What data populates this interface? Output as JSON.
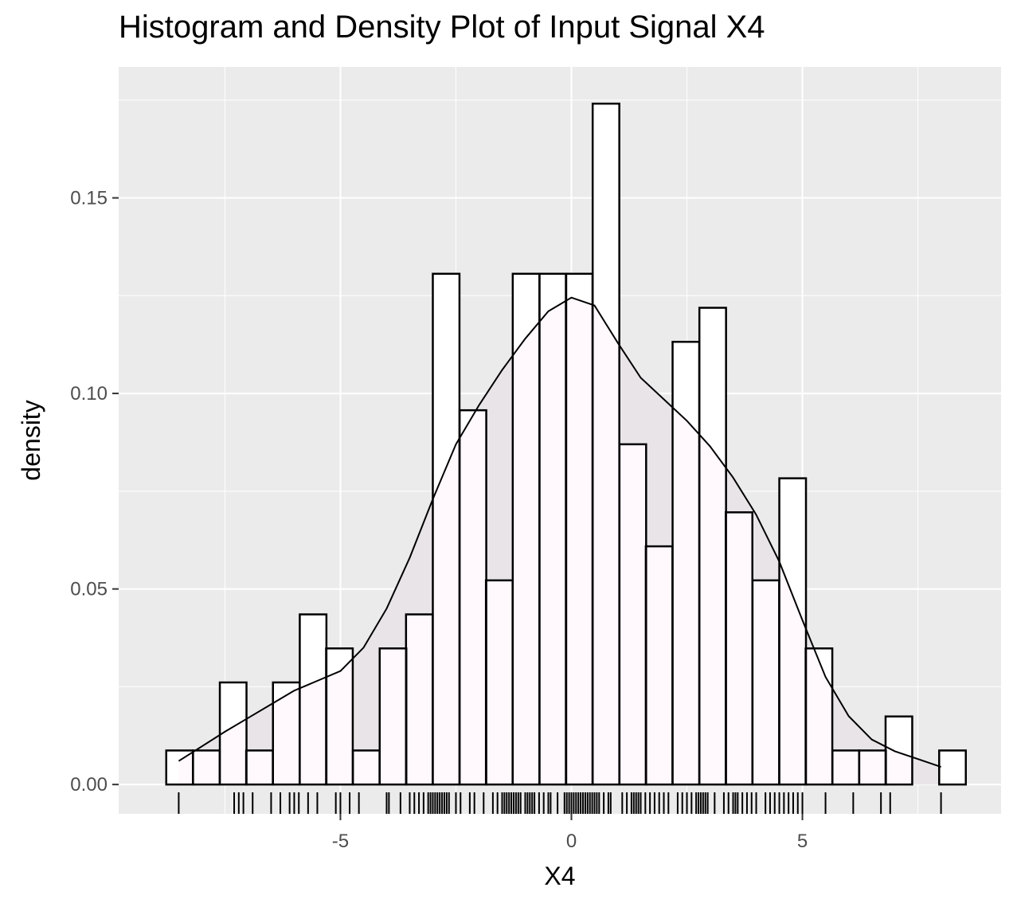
{
  "chart_data": {
    "type": "histogram",
    "title": "Histogram and Density Plot of Input Signal X4",
    "xlabel": "X4",
    "ylabel": "density",
    "xlim": [
      -9.8,
      9.3
    ],
    "ylim": [
      -0.0075,
      0.1835
    ],
    "x_ticks": [
      -5,
      0,
      5
    ],
    "x_tick_labels": [
      "-5",
      "0",
      "5"
    ],
    "y_ticks": [
      0.0,
      0.05,
      0.1,
      0.15
    ],
    "y_tick_labels": [
      "0.00",
      "0.05",
      "0.10",
      "0.15"
    ],
    "grid": true,
    "bin_width": 0.577,
    "bins": [
      {
        "x0": -8.77,
        "density": 0.0087
      },
      {
        "x0": -8.19,
        "density": 0.0087
      },
      {
        "x0": -7.61,
        "density": 0.0261
      },
      {
        "x0": -7.04,
        "density": 0.0087
      },
      {
        "x0": -6.46,
        "density": 0.0261
      },
      {
        "x0": -5.88,
        "density": 0.0435
      },
      {
        "x0": -5.31,
        "density": 0.0348
      },
      {
        "x0": -4.73,
        "density": 0.0087
      },
      {
        "x0": -4.15,
        "density": 0.0348
      },
      {
        "x0": -3.58,
        "density": 0.0435
      },
      {
        "x0": -3.0,
        "density": 0.1306
      },
      {
        "x0": -2.42,
        "density": 0.0957
      },
      {
        "x0": -1.85,
        "density": 0.0522
      },
      {
        "x0": -1.27,
        "density": 0.1306
      },
      {
        "x0": -0.69,
        "density": 0.1306
      },
      {
        "x0": -0.12,
        "density": 0.1306
      },
      {
        "x0": 0.46,
        "density": 0.1741
      },
      {
        "x0": 1.04,
        "density": 0.087
      },
      {
        "x0": 1.61,
        "density": 0.0609
      },
      {
        "x0": 2.19,
        "density": 0.1132
      },
      {
        "x0": 2.77,
        "density": 0.1219
      },
      {
        "x0": 3.34,
        "density": 0.0696
      },
      {
        "x0": 3.92,
        "density": 0.0522
      },
      {
        "x0": 4.5,
        "density": 0.0783
      },
      {
        "x0": 5.07,
        "density": 0.0348
      },
      {
        "x0": 5.65,
        "density": 0.0087
      },
      {
        "x0": 6.23,
        "density": 0.0087
      },
      {
        "x0": 6.8,
        "density": 0.0174
      },
      {
        "x0": 7.38,
        "density": 0.0
      },
      {
        "x0": 7.96,
        "density": 0.0087
      }
    ],
    "density_curve": {
      "x": [
        -8.5,
        -7.5,
        -7.0,
        -6.5,
        -6.0,
        -5.5,
        -5.0,
        -4.5,
        -4.0,
        -3.5,
        -3.0,
        -2.5,
        -2.0,
        -1.5,
        -1.0,
        -0.5,
        0.0,
        0.5,
        1.0,
        1.5,
        2.0,
        2.5,
        3.0,
        3.5,
        4.0,
        4.5,
        5.0,
        5.5,
        6.0,
        6.5,
        7.0,
        7.5,
        8.0
      ],
      "y": [
        0.006,
        0.0135,
        0.017,
        0.0205,
        0.024,
        0.0265,
        0.029,
        0.035,
        0.045,
        0.058,
        0.073,
        0.087,
        0.097,
        0.106,
        0.114,
        0.121,
        0.1245,
        0.1225,
        0.113,
        0.104,
        0.0985,
        0.093,
        0.0865,
        0.0785,
        0.069,
        0.057,
        0.042,
        0.0275,
        0.0175,
        0.0115,
        0.0085,
        0.0065,
        0.0045
      ]
    },
    "rug": [
      -8.5,
      -7.3,
      -7.2,
      -7.1,
      -6.9,
      -6.5,
      -6.3,
      -6.1,
      -6.0,
      -5.9,
      -5.7,
      -5.5,
      -5.1,
      -5.0,
      -4.8,
      -4.6,
      -4.0,
      -3.95,
      -3.7,
      -3.5,
      -3.4,
      -3.3,
      -3.2,
      -3.1,
      -3.05,
      -3.0,
      -2.95,
      -2.9,
      -2.85,
      -2.8,
      -2.75,
      -2.7,
      -2.65,
      -2.5,
      -2.4,
      -2.2,
      -2.1,
      -1.9,
      -1.7,
      -1.6,
      -1.5,
      -1.45,
      -1.4,
      -1.35,
      -1.3,
      -1.25,
      -1.2,
      -1.15,
      -1.1,
      -1.0,
      -0.95,
      -0.9,
      -0.85,
      -0.8,
      -0.7,
      -0.6,
      -0.5,
      -0.45,
      -0.3,
      -0.15,
      -0.1,
      -0.05,
      0.0,
      0.05,
      0.1,
      0.15,
      0.2,
      0.25,
      0.3,
      0.35,
      0.4,
      0.45,
      0.5,
      0.55,
      0.6,
      0.7,
      0.8,
      0.85,
      1.1,
      1.2,
      1.3,
      1.35,
      1.4,
      1.45,
      1.5,
      1.6,
      1.7,
      1.8,
      1.9,
      2.0,
      2.1,
      2.3,
      2.4,
      2.5,
      2.6,
      2.7,
      2.75,
      2.8,
      2.85,
      2.9,
      2.95,
      3.1,
      3.3,
      3.4,
      3.5,
      3.55,
      3.6,
      3.7,
      3.8,
      3.9,
      4.0,
      4.2,
      4.3,
      4.4,
      4.5,
      4.6,
      4.7,
      4.8,
      4.9,
      5.0,
      5.5,
      6.1,
      6.7,
      6.9,
      8.0
    ]
  }
}
